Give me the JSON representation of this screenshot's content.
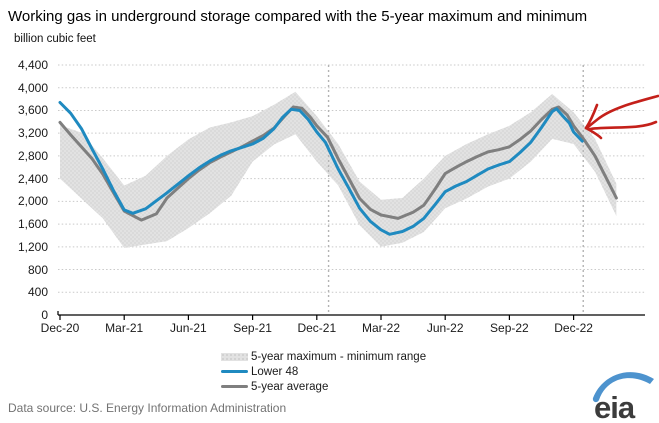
{
  "title": "Working gas in underground storage compared with the 5-year maximum and minimum",
  "units_label": "billion cubic feet",
  "source_note": "Data source:  U.S. Energy Information Administration",
  "logo": {
    "text": "eia",
    "swoosh_color": "#4d93ce",
    "text_color": "#3c3c3c"
  },
  "annotation": {
    "kind": "hand-drawn-arrow",
    "color": "#c4201a",
    "points_at": "end of Lower 48 line near Dec-22 divider"
  },
  "colors": {
    "band_fill": "#e2e2e2",
    "lower48_line": "#1f8ac0",
    "avg_line": "#7f7f7f",
    "gridline": "#c9c9c9",
    "year_divider": "#b3b3b3"
  },
  "chart_data": {
    "type": "line",
    "title": "Working gas in underground storage compared with the 5-year maximum and minimum",
    "ylabel": "billion cubic feet",
    "ylim": [
      0,
      4400
    ],
    "grid": "horizontal-dotted",
    "legend_position": "bottom",
    "y_tick_values": [
      0,
      400,
      800,
      1200,
      1600,
      2000,
      2400,
      2800,
      3200,
      3600,
      4000,
      4400
    ],
    "y_tick_labels": [
      "0",
      "400",
      "800",
      "1,200",
      "1,600",
      "2,000",
      "2,400",
      "2,800",
      "3,200",
      "3,600",
      "4,000",
      "4,400"
    ],
    "x_tick_months": [
      0,
      3,
      6,
      9,
      12,
      15,
      18,
      21,
      24
    ],
    "x_tick_labels": [
      "Dec-20",
      "Mar-21",
      "Jun-21",
      "Sep-21",
      "Dec-21",
      "Mar-22",
      "Jun-22",
      "Sep-22",
      "Dec-22"
    ],
    "year_divider_months": [
      12.55,
      24.45
    ],
    "series": [
      {
        "name": "5-year maximum - minimum range",
        "type": "band",
        "color": "#e2e2e2",
        "x": [
          0,
          1,
          2,
          3,
          4,
          5,
          6,
          7,
          8,
          9,
          10,
          11,
          12,
          13,
          14,
          15,
          16,
          17,
          18,
          19,
          20,
          21,
          22,
          23,
          24,
          25,
          26
        ],
        "max": [
          3340,
          3210,
          2760,
          2280,
          2450,
          2800,
          3090,
          3300,
          3390,
          3500,
          3700,
          3930,
          3500,
          3010,
          2350,
          2030,
          2060,
          2400,
          2800,
          3010,
          3180,
          3330,
          3570,
          3890,
          3570,
          3100,
          2310
        ],
        "min": [
          2400,
          2050,
          1700,
          1180,
          1240,
          1300,
          1530,
          1790,
          2100,
          2700,
          3000,
          3180,
          2700,
          2280,
          1580,
          1200,
          1270,
          1460,
          1880,
          2050,
          2260,
          2400,
          2700,
          3100,
          3010,
          2520,
          1740
        ]
      },
      {
        "name": "Lower 48",
        "type": "line",
        "color": "#1f8ac0",
        "x": [
          0,
          0.5,
          1,
          1.5,
          2,
          2.5,
          3,
          3.4,
          4,
          4.5,
          5,
          5.5,
          6,
          6.5,
          7,
          7.5,
          8,
          8.5,
          9,
          9.5,
          10,
          10.4,
          10.8,
          11.2,
          11.6,
          12,
          12.4,
          13,
          13.5,
          14,
          14.5,
          15,
          15.4,
          16,
          16.5,
          17,
          17.5,
          18,
          18.5,
          19,
          19.5,
          20,
          20.5,
          21,
          21.5,
          22,
          22.5,
          23,
          23.2,
          23.5,
          23.8,
          24,
          24.4
        ],
        "values": [
          3740,
          3550,
          3280,
          2920,
          2570,
          2190,
          1850,
          1790,
          1870,
          2010,
          2150,
          2300,
          2450,
          2590,
          2710,
          2810,
          2890,
          2950,
          3010,
          3110,
          3280,
          3480,
          3620,
          3600,
          3440,
          3220,
          3040,
          2570,
          2230,
          1880,
          1650,
          1500,
          1420,
          1470,
          1560,
          1700,
          1930,
          2170,
          2270,
          2350,
          2460,
          2570,
          2640,
          2700,
          2860,
          3040,
          3300,
          3580,
          3630,
          3500,
          3380,
          3220,
          3060
        ]
      },
      {
        "name": "5-year average",
        "type": "line",
        "color": "#7f7f7f",
        "x": [
          0,
          0.5,
          1,
          1.5,
          2,
          2.5,
          3,
          3.8,
          4.5,
          5,
          5.5,
          6,
          6.5,
          7,
          7.5,
          8,
          8.5,
          9,
          9.5,
          10,
          10.5,
          10.9,
          11.3,
          11.7,
          12,
          12.5,
          13,
          13.5,
          14,
          14.5,
          15,
          15.8,
          16.5,
          17,
          17.5,
          18,
          18.5,
          19,
          19.5,
          20,
          20.5,
          21,
          21.5,
          22,
          22.5,
          23,
          23.3,
          23.7,
          24,
          24.5,
          25,
          25.5,
          26
        ],
        "values": [
          3390,
          3170,
          2960,
          2750,
          2480,
          2150,
          1830,
          1670,
          1780,
          2060,
          2230,
          2400,
          2550,
          2680,
          2780,
          2870,
          2960,
          3060,
          3160,
          3290,
          3500,
          3660,
          3640,
          3480,
          3330,
          3130,
          2750,
          2400,
          2050,
          1860,
          1760,
          1700,
          1810,
          1930,
          2200,
          2490,
          2600,
          2700,
          2790,
          2870,
          2910,
          2960,
          3090,
          3240,
          3440,
          3620,
          3660,
          3520,
          3330,
          3080,
          2800,
          2430,
          2060
        ]
      }
    ]
  }
}
